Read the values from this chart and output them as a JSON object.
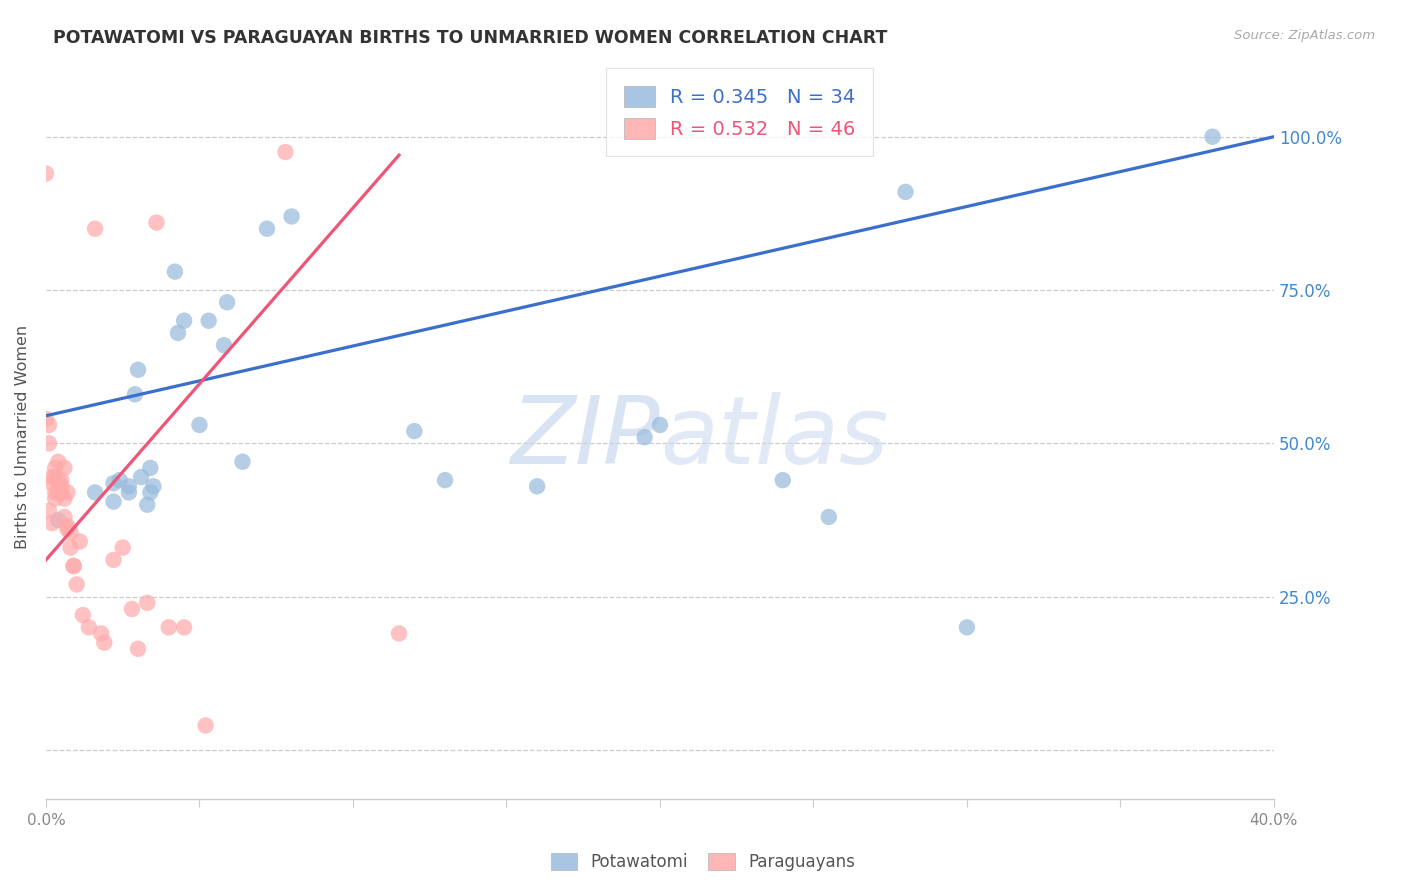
{
  "title": "POTAWATOMI VS PARAGUAYAN BIRTHS TO UNMARRIED WOMEN CORRELATION CHART",
  "source": "Source: ZipAtlas.com",
  "ylabel": "Births to Unmarried Women",
  "legend_blue_r": "R = 0.345",
  "legend_blue_n": "N = 34",
  "legend_pink_r": "R = 0.532",
  "legend_pink_n": "N = 46",
  "blue_scatter_color": "#99BBDD",
  "pink_scatter_color": "#FFAAAA",
  "blue_line_color": "#3B6FCC",
  "pink_line_color": "#EE5577",
  "right_label_color": "#4488CC",
  "xlim": [
    0.0,
    0.4
  ],
  "ylim": [
    -0.08,
    1.1
  ],
  "xticks": [
    0.0,
    0.05,
    0.1,
    0.15,
    0.2,
    0.25,
    0.3,
    0.35,
    0.4
  ],
  "yticks": [
    0.0,
    0.25,
    0.5,
    0.75,
    1.0
  ],
  "ytick_labels": [
    "",
    "25.0%",
    "50.0%",
    "75.0%",
    "100.0%"
  ],
  "potawatomi_x": [
    0.004,
    0.016,
    0.022,
    0.022,
    0.024,
    0.027,
    0.027,
    0.029,
    0.03,
    0.031,
    0.033,
    0.034,
    0.034,
    0.035,
    0.042,
    0.043,
    0.045,
    0.05,
    0.053,
    0.058,
    0.059,
    0.064,
    0.072,
    0.08,
    0.12,
    0.13,
    0.16,
    0.195,
    0.2,
    0.24,
    0.255,
    0.28,
    0.3,
    0.38
  ],
  "potawatomi_y": [
    0.375,
    0.42,
    0.405,
    0.435,
    0.44,
    0.42,
    0.43,
    0.58,
    0.62,
    0.445,
    0.4,
    0.42,
    0.46,
    0.43,
    0.78,
    0.68,
    0.7,
    0.53,
    0.7,
    0.66,
    0.73,
    0.47,
    0.85,
    0.87,
    0.52,
    0.44,
    0.43,
    0.51,
    0.53,
    0.44,
    0.38,
    0.91,
    0.2,
    1.0
  ],
  "paraguayan_x": [
    0.0,
    0.0,
    0.001,
    0.001,
    0.001,
    0.002,
    0.002,
    0.002,
    0.003,
    0.003,
    0.003,
    0.003,
    0.004,
    0.004,
    0.004,
    0.005,
    0.005,
    0.005,
    0.006,
    0.006,
    0.006,
    0.007,
    0.007,
    0.007,
    0.008,
    0.008,
    0.009,
    0.009,
    0.01,
    0.011,
    0.012,
    0.014,
    0.016,
    0.018,
    0.019,
    0.022,
    0.025,
    0.028,
    0.03,
    0.033,
    0.036,
    0.04,
    0.045,
    0.052,
    0.078,
    0.115
  ],
  "paraguayan_y": [
    0.94,
    0.54,
    0.53,
    0.39,
    0.5,
    0.435,
    0.445,
    0.37,
    0.41,
    0.46,
    0.42,
    0.445,
    0.42,
    0.47,
    0.44,
    0.43,
    0.42,
    0.44,
    0.38,
    0.41,
    0.46,
    0.365,
    0.42,
    0.36,
    0.355,
    0.33,
    0.3,
    0.3,
    0.27,
    0.34,
    0.22,
    0.2,
    0.85,
    0.19,
    0.175,
    0.31,
    0.33,
    0.23,
    0.165,
    0.24,
    0.86,
    0.2,
    0.2,
    0.04,
    0.975,
    0.19
  ],
  "blue_line_x": [
    0.0,
    0.4
  ],
  "blue_line_y": [
    0.545,
    1.0
  ],
  "pink_line_x": [
    0.0,
    0.115
  ],
  "pink_line_y": [
    0.31,
    0.97
  ]
}
